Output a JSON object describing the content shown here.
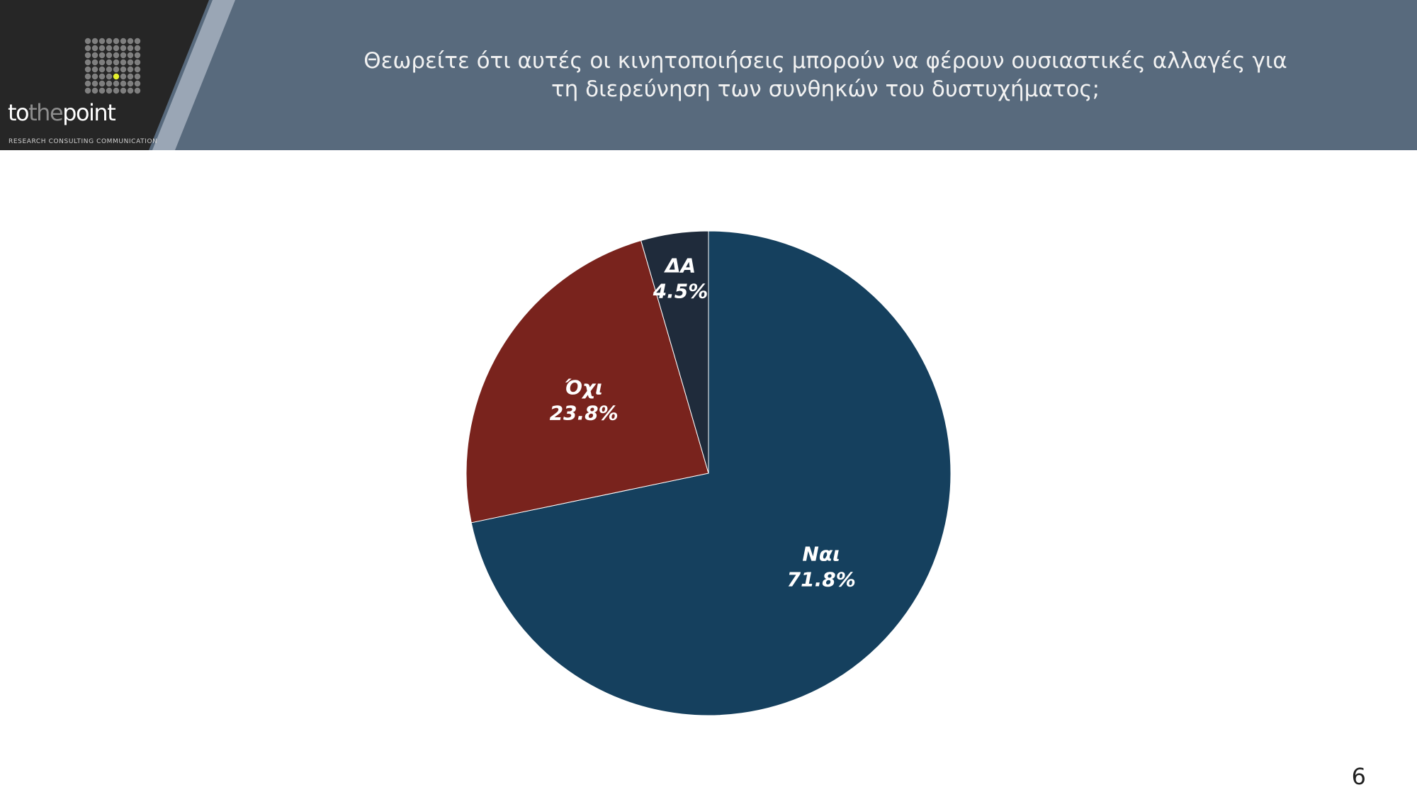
{
  "slide": {
    "title_line1": "Θεωρείτε ότι αυτές οι κινητοποιήσεις μπορούν να φέρουν ουσιαστικές αλλαγές για",
    "title_line2": "τη διερεύνηση των συνθηκών του δυστυχήματος;",
    "page_number": "6"
  },
  "logo": {
    "brand_left": "to",
    "brand_mid": "the",
    "brand_right": "point",
    "tagline": "RESEARCH CONSULTING COMMUNICATION",
    "dot_color": "#7f7f7f",
    "highlight_dot_color": "#e4ef2e"
  },
  "colors": {
    "logo_bg": "#262626",
    "title_band": "#586a7d",
    "stripe": "#9aa6b5"
  },
  "chart_data": {
    "type": "pie",
    "title": "",
    "start_angle": "top",
    "direction": "clockwise",
    "slices": [
      {
        "label": "Ναι",
        "value": 71.8,
        "display": "71.8%",
        "color": "#15405e"
      },
      {
        "label": "Όχι",
        "value": 23.8,
        "display": "23.8%",
        "color": "#79231d"
      },
      {
        "label": "ΔΑ",
        "value": 4.5,
        "display": "4.5%",
        "color": "#1f2b3b"
      }
    ]
  }
}
